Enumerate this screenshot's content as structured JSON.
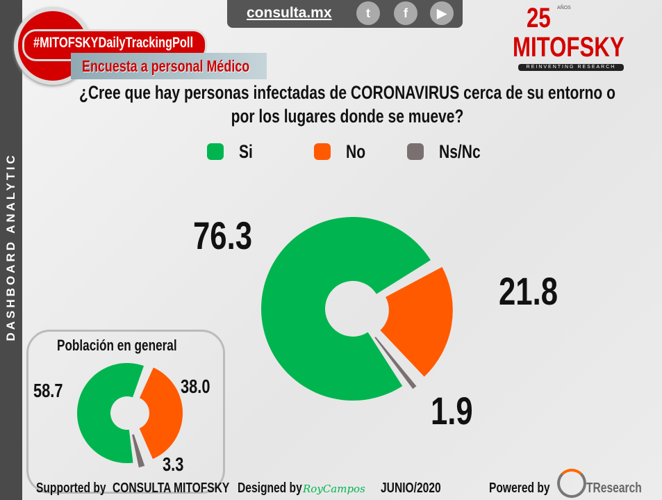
{
  "sidebar": {
    "label": "DASHBOARD ANALYTIC"
  },
  "header": {
    "hashtag": "#MITOFSKYDailyTrackingPoll",
    "subtitle": "Encuesta a personal Médico",
    "site": "consulta.mx",
    "social": [
      "twitter-icon",
      "facebook-icon",
      "youtube-icon"
    ],
    "logo": {
      "number": "25",
      "anos": "AÑOS",
      "name": "MITOFSKY",
      "tagline": "REINVENTING RESEARCH"
    }
  },
  "chart_data": [
    {
      "type": "pie",
      "title": "¿Cree que hay personas infectadas de CORONAVIRUS cerca de su entorno o por los lugares donde se mueve?",
      "categories": [
        "Si",
        "No",
        "Ns/Nc"
      ],
      "values": [
        76.3,
        21.8,
        1.9
      ],
      "labels": [
        "76.3",
        "21.8",
        "1.9"
      ],
      "colors": [
        "#00b54f",
        "#ff5a00",
        "#7a7070"
      ],
      "donut": true,
      "legend": "top"
    },
    {
      "type": "pie",
      "title": "Población en general",
      "categories": [
        "Si",
        "No",
        "Ns/Nc"
      ],
      "values": [
        58.7,
        38.0,
        3.3
      ],
      "labels": [
        "58.7",
        "38.0",
        "3.3"
      ],
      "colors": [
        "#00b54f",
        "#ff5a00",
        "#7a7070"
      ],
      "donut": true
    }
  ],
  "footer": {
    "supported": "Supported by",
    "consulta": "CONSULTA",
    "mitofsky": "MITOFSKY",
    "designed": "Designed by",
    "designer": "RoyCampos",
    "date": "JUNIO/2020",
    "powered": "Powered by",
    "tresearch": "TResearch"
  }
}
